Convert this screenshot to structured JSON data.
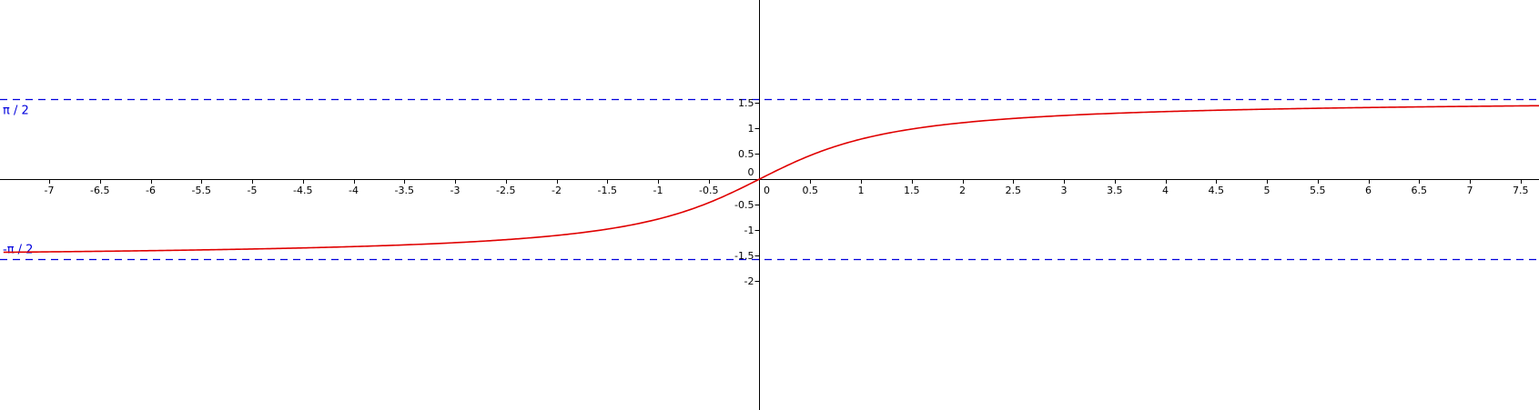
{
  "chart_data": {
    "type": "line",
    "function": "arctan(x)",
    "xlim": [
      -7.45,
      7.7
    ],
    "ylim": [
      -2.28,
      1.78
    ],
    "x_ticks": [
      -7,
      -6.5,
      -6,
      -5.5,
      -5,
      -4.5,
      -4,
      -3.5,
      -3,
      -2.5,
      -2,
      -1.5,
      -1,
      -0.5,
      0,
      0.5,
      1,
      1.5,
      2,
      2.5,
      3,
      3.5,
      4,
      4.5,
      5,
      5.5,
      6,
      6.5,
      7,
      7.5
    ],
    "x_tick_labels": [
      "-7",
      "-6.5",
      "-6",
      "-5.5",
      "-5",
      "-4.5",
      "-4",
      "-3.5",
      "-3",
      "-2.5",
      "-2",
      "-1.5",
      "-1",
      "-0.5",
      "0",
      "0.5",
      "1",
      "1.5",
      "2",
      "2.5",
      "3",
      "3.5",
      "4",
      "4.5",
      "5",
      "5.5",
      "6",
      "6.5",
      "7",
      "7.5"
    ],
    "y_ticks": [
      1.5,
      1,
      0.5,
      0,
      -0.5,
      -1,
      -1.5,
      -2
    ],
    "y_tick_labels": [
      "1.5",
      "1",
      "0.5",
      "0",
      "-0.5",
      "-1",
      "-1.5",
      "-2"
    ],
    "series": [
      {
        "color": "#e00000",
        "x": [
          -7.45,
          -7,
          -6.5,
          -6,
          -5.5,
          -5,
          -4.5,
          -4,
          -3.5,
          -3,
          -2.5,
          -2,
          -1.5,
          -1,
          -0.5,
          0,
          0.5,
          1,
          1.5,
          2,
          2.5,
          3,
          3.5,
          4,
          4.5,
          5,
          5.5,
          6,
          6.5,
          7,
          7.5,
          7.7
        ],
        "y": [
          -1.4374,
          -1.4289,
          -1.4176,
          -1.4056,
          -1.3909,
          -1.3734,
          -1.3521,
          -1.3258,
          -1.2925,
          -1.249,
          -1.1903,
          -1.1071,
          -0.9828,
          -0.7854,
          -0.4636,
          0,
          0.4636,
          0.7854,
          0.9828,
          1.1071,
          1.1903,
          1.249,
          1.2925,
          1.3258,
          1.3521,
          1.3734,
          1.3909,
          1.4056,
          1.4176,
          1.4289,
          1.4382,
          1.4416
        ]
      }
    ],
    "asymptotes": [
      {
        "y": 1.5708,
        "label": "π / 2",
        "color": "#0000dd"
      },
      {
        "y": -1.5708,
        "label": "-π / 2",
        "color": "#0000dd"
      }
    ],
    "grid": false,
    "legend": "none",
    "title": "",
    "xlabel": "",
    "ylabel": ""
  }
}
